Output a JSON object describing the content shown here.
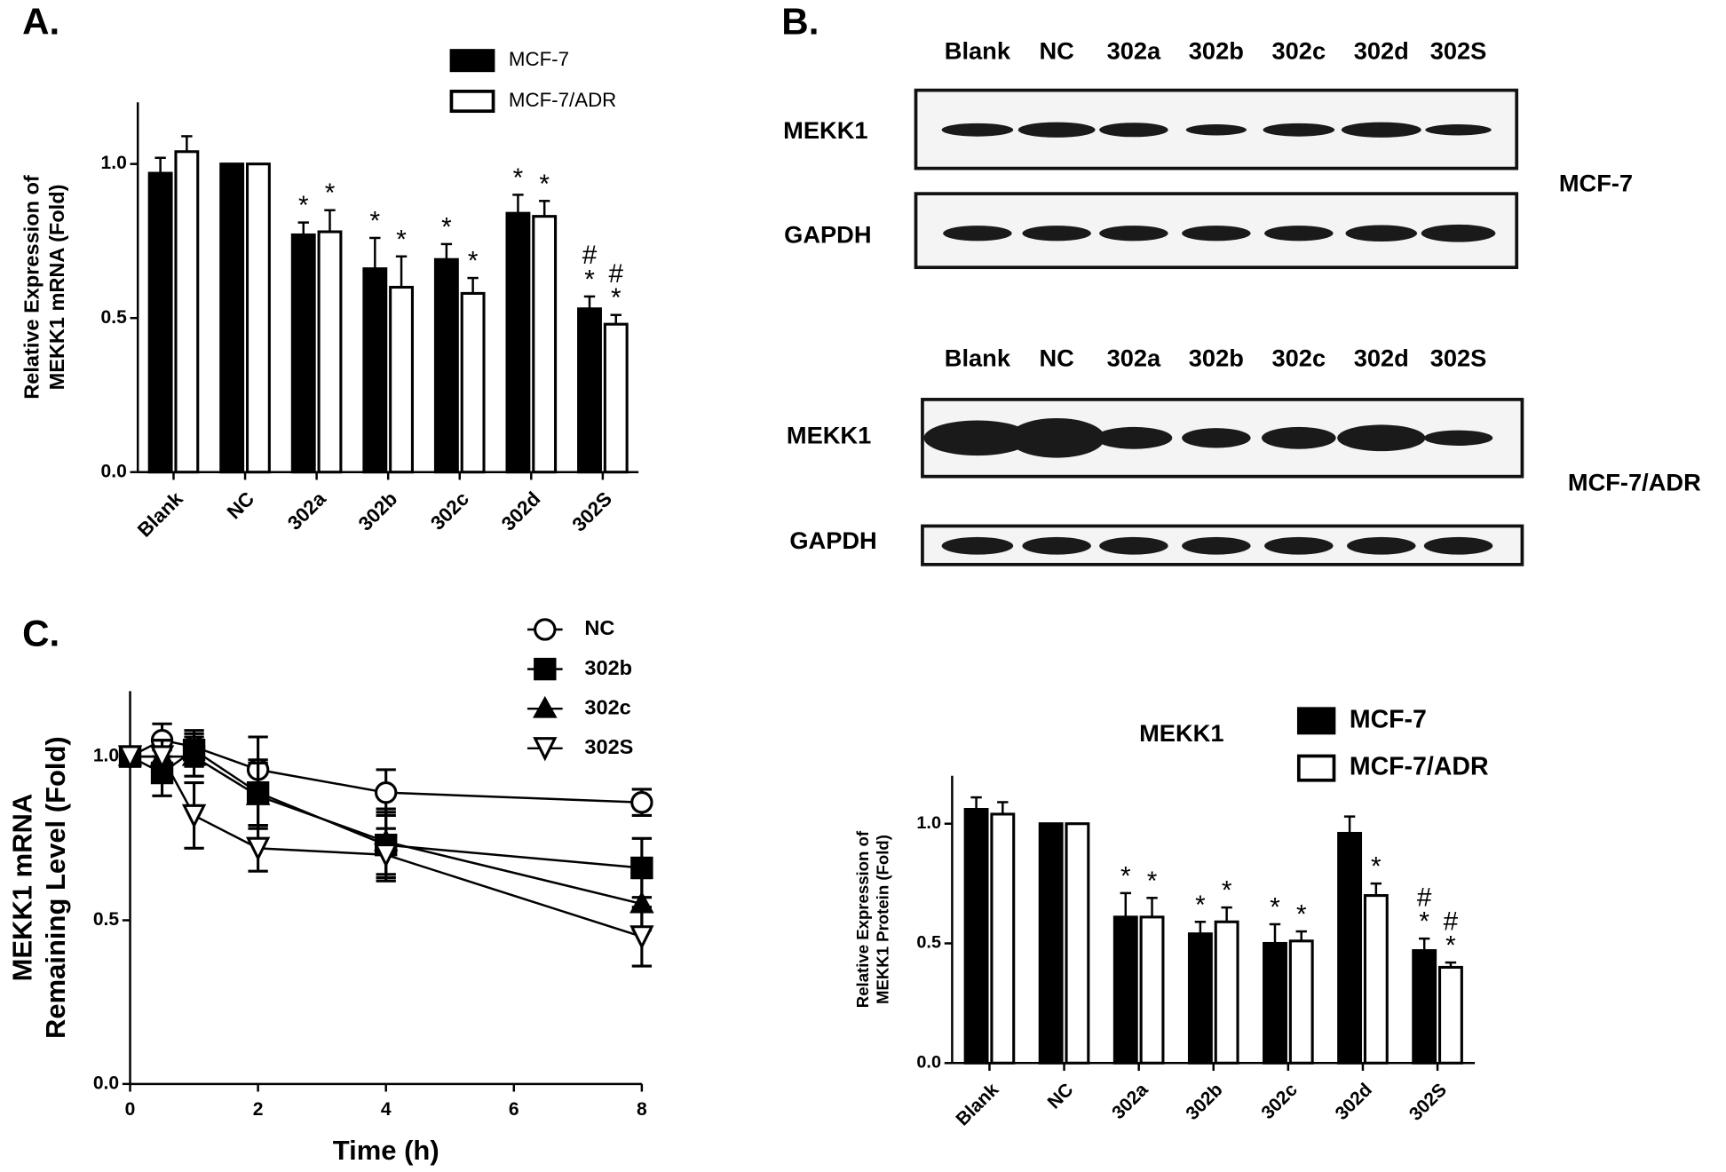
{
  "panel_labels": [
    "A.",
    "B.",
    "C."
  ],
  "blots": {
    "lanes": [
      "Blank",
      "NC",
      "302a",
      "302b",
      "302c",
      "302d",
      "302S"
    ],
    "groups": [
      {
        "cell": "MCF-7",
        "rows": [
          "MEKK1",
          "GAPDH"
        ]
      },
      {
        "cell": "MCF-7/ADR",
        "rows": [
          "MEKK1",
          "GAPDH"
        ]
      }
    ]
  },
  "chart_data": [
    {
      "type": "bar",
      "y_label": [
        "Relative Expression of",
        "MEKK1 mRNA  (Fold)"
      ],
      "categories": [
        "Blank",
        "NC",
        "302a",
        "302b",
        "302c",
        "302d",
        "302S"
      ],
      "series": [
        {
          "name": "MCF-7",
          "color": "#000000",
          "values": [
            0.97,
            1.0,
            0.77,
            0.66,
            0.69,
            0.84,
            0.53
          ],
          "errors": [
            0.05,
            0,
            0.04,
            0.1,
            0.05,
            0.06,
            0.04
          ],
          "annotations": [
            null,
            null,
            [
              "*"
            ],
            [
              "*"
            ],
            [
              "*"
            ],
            [
              "*"
            ],
            [
              "#",
              "*"
            ]
          ]
        },
        {
          "name": "MCF-7/ADR",
          "color": "#ffffff",
          "values": [
            1.04,
            1.0,
            0.78,
            0.6,
            0.58,
            0.83,
            0.48
          ],
          "errors": [
            0.05,
            0,
            0.07,
            0.1,
            0.05,
            0.05,
            0.03
          ],
          "annotations": [
            null,
            null,
            [
              "*"
            ],
            [
              "*"
            ],
            [
              "*"
            ],
            [
              "*"
            ],
            [
              "#",
              "*"
            ]
          ]
        }
      ],
      "ylim": [
        0,
        1.2
      ],
      "yticks": [
        {
          "value": 0,
          "label": "0.0"
        },
        {
          "value": 0.5,
          "label": "0.5"
        },
        {
          "value": 1,
          "label": "1.0"
        }
      ]
    },
    {
      "type": "line",
      "y_label": [
        "MEKK1 mRNA",
        "Remaining Level (Fold)"
      ],
      "x_label": "Time (h)",
      "x": [
        0,
        0.5,
        1,
        2,
        4,
        8
      ],
      "series": [
        {
          "name": "NC",
          "marker": "circle-open",
          "values": [
            1.0,
            1.05,
            1.03,
            0.96,
            0.89,
            0.86
          ],
          "errors": [
            0.02,
            0.05,
            0.05,
            0.1,
            0.07,
            0.04
          ]
        },
        {
          "name": "302b",
          "marker": "square",
          "values": [
            1.0,
            0.95,
            1.02,
            0.89,
            0.73,
            0.66
          ],
          "errors": [
            0.02,
            0.07,
            0.05,
            0.1,
            0.1,
            0.09
          ]
        },
        {
          "name": "302c",
          "marker": "triangle",
          "values": [
            1.0,
            1.0,
            1.0,
            0.88,
            0.74,
            0.55
          ],
          "errors": [
            0.02,
            0.05,
            0.06,
            0.1,
            0.1,
            0.08
          ]
        },
        {
          "name": "302S",
          "marker": "triangle-down-open",
          "values": [
            1.0,
            1.0,
            0.82,
            0.72,
            0.7,
            0.45
          ],
          "errors": [
            0.02,
            0.05,
            0.1,
            0.07,
            0.08,
            0.09
          ]
        }
      ],
      "xlim": [
        0,
        8
      ],
      "xticks": [
        0,
        2,
        4,
        6,
        8
      ],
      "ylim": [
        0,
        1.2
      ],
      "yticks": [
        {
          "value": 0,
          "label": "0.0"
        },
        {
          "value": 0.5,
          "label": "0.5"
        },
        {
          "value": 1,
          "label": "1.0"
        }
      ]
    },
    {
      "type": "bar",
      "title": "MEKK1",
      "y_label": [
        "Relative Expression of",
        "MEKK1 Protein  (Fold)"
      ],
      "categories": [
        "Blank",
        "NC",
        "302a",
        "302b",
        "302c",
        "302d",
        "302S"
      ],
      "series": [
        {
          "name": "MCF-7",
          "color": "#000000",
          "values": [
            1.06,
            1.0,
            0.61,
            0.54,
            0.5,
            0.96,
            0.47
          ],
          "errors": [
            0.05,
            0,
            0.1,
            0.05,
            0.08,
            0.07,
            0.05
          ],
          "annotations": [
            null,
            null,
            [
              "*"
            ],
            [
              "*"
            ],
            [
              "*"
            ],
            null,
            [
              "#",
              "*"
            ]
          ]
        },
        {
          "name": "MCF-7/ADR",
          "color": "#ffffff",
          "values": [
            1.04,
            1.0,
            0.61,
            0.59,
            0.51,
            0.7,
            0.4
          ],
          "errors": [
            0.05,
            0,
            0.08,
            0.06,
            0.04,
            0.05,
            0.02
          ],
          "annotations": [
            null,
            null,
            [
              "*"
            ],
            [
              "*"
            ],
            [
              "*"
            ],
            [
              "*"
            ],
            [
              "#",
              "*"
            ]
          ]
        }
      ],
      "ylim": [
        0,
        1.2
      ],
      "yticks": [
        {
          "value": 0,
          "label": "0.0"
        },
        {
          "value": 0.5,
          "label": "0.5"
        },
        {
          "value": 1,
          "label": "1.0"
        }
      ]
    }
  ]
}
